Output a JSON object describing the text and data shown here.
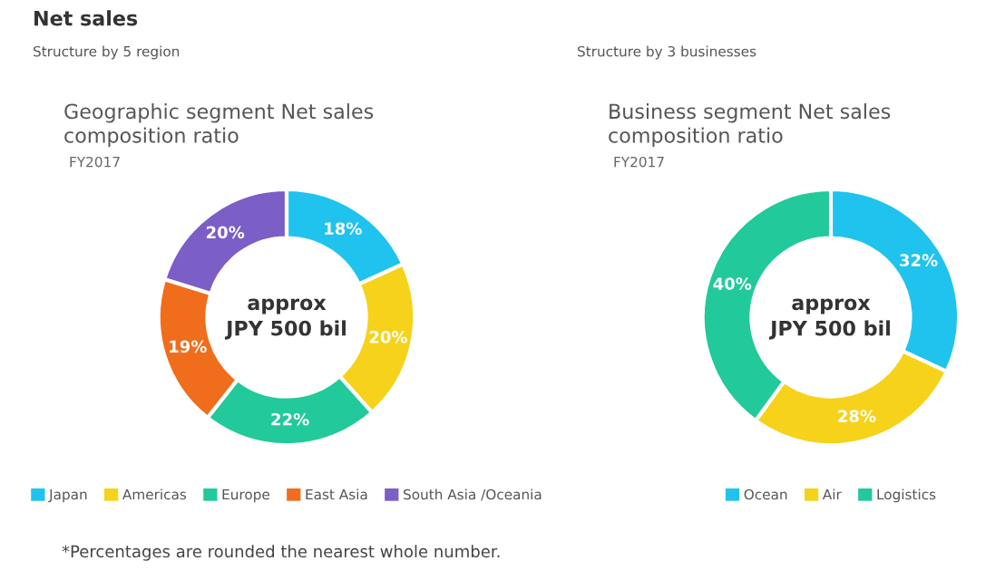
{
  "chart_data": [
    {
      "type": "donut",
      "title": "Geographic segment Net sales\ncomposition ratio",
      "subtitle": "FY2017",
      "categories": [
        "Japan",
        "Americas",
        "Europe",
        "East Asia",
        "South Asia /Oceania"
      ],
      "values": [
        18,
        20,
        22,
        19,
        20
      ],
      "value_labels": [
        "18%",
        "20%",
        "22%",
        "19%",
        "20%"
      ],
      "colors": [
        "#1fc3ee",
        "#f6d21a",
        "#22c99a",
        "#f06d1c",
        "#7b5ec6"
      ],
      "legend": "bottom",
      "annotations": [
        "Net sales",
        "Structure by 5 region",
        "approx\nJPY 500 bil",
        "*Percentages are rounded the nearest whole number."
      ]
    },
    {
      "type": "donut",
      "title": "Business segment Net sales\ncomposition ratio",
      "subtitle": "FY2017",
      "categories": [
        "Ocean",
        "Air",
        "Logistics"
      ],
      "values": [
        32,
        28,
        40
      ],
      "value_labels": [
        "32%",
        "28%",
        "40%"
      ],
      "colors": [
        "#1fc3ee",
        "#f6d21a",
        "#22c99a"
      ],
      "legend": "bottom",
      "annotations": [
        "Structure by 3 businesses",
        "approx\nJPY 500 bil"
      ]
    }
  ]
}
